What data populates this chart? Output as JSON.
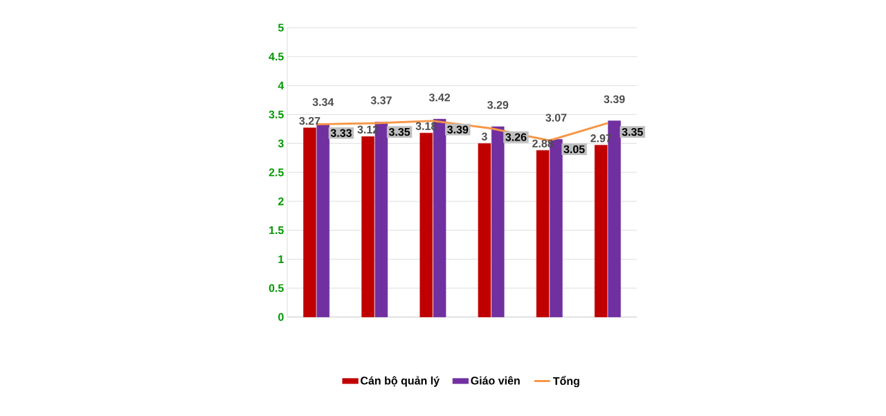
{
  "chart_data": {
    "type": "bar",
    "categories": [
      null,
      null,
      null,
      null,
      null,
      null
    ],
    "series": [
      {
        "name": "Cán bộ quản lý",
        "color": "#c00000",
        "values": [
          3.27,
          3.12,
          3.18,
          3,
          2.88,
          2.97
        ]
      },
      {
        "name": "Giáo viên",
        "color": "#7030a0",
        "values": [
          3.34,
          3.37,
          3.42,
          3.29,
          3.07,
          3.39
        ]
      },
      {
        "name": "Tổng",
        "type": "line",
        "color": "#f79646",
        "values": [
          3.33,
          3.35,
          3.39,
          3.26,
          3.05,
          3.35
        ]
      }
    ],
    "ylim": [
      0,
      5
    ],
    "yticks": [
      0,
      0.5,
      1,
      1.5,
      2,
      2.5,
      3,
      3.5,
      4,
      4.5,
      5
    ],
    "grid": "y",
    "legend": "bottom",
    "data_labels": true,
    "marker": "none"
  }
}
